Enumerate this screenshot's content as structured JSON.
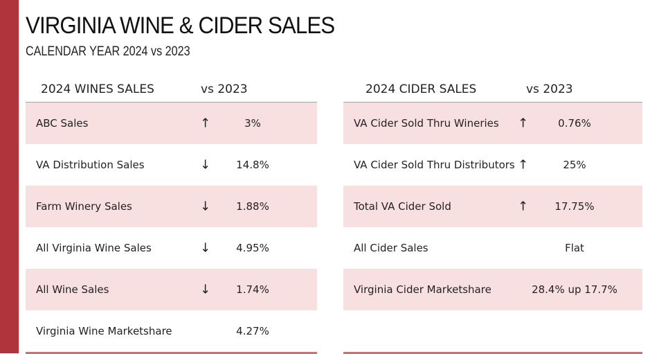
{
  "title": "VIRGINIA WINE & CIDER SALES",
  "subtitle": "CALENDAR YEAR 2024 vs 2023",
  "wine": {
    "heading": "2024 WINES SALES",
    "vs": "vs 2023",
    "rows": [
      {
        "label": "ABC Sales",
        "trend": "up",
        "value": "3%"
      },
      {
        "label": "VA Distribution Sales",
        "trend": "down",
        "value": "14.8%"
      },
      {
        "label": "Farm Winery Sales",
        "trend": "down",
        "value": "1.88%"
      },
      {
        "label": "All Virginia Wine Sales",
        "trend": "down",
        "value": "4.95%"
      },
      {
        "label": "All Wine Sales",
        "trend": "down",
        "value": "1.74%"
      },
      {
        "label": "Virginia Wine Marketshare",
        "trend": "none",
        "value": "4.27%"
      }
    ]
  },
  "cider": {
    "heading": "2024 CIDER SALES",
    "vs": "vs 2023",
    "rows": [
      {
        "label": "VA Cider Sold Thru Wineries",
        "trend": "up",
        "value": "0.76%"
      },
      {
        "label": "VA Cider Sold Thru Distributors",
        "trend": "up",
        "value": "25%"
      },
      {
        "label": "Total VA Cider Sold",
        "trend": "up",
        "value": "17.75%"
      },
      {
        "label": "All Cider Sales",
        "trend": "none",
        "value": "Flat"
      },
      {
        "label": "Virginia Cider Marketshare",
        "trend": "none",
        "value": "28.4% up 17.7%"
      }
    ]
  },
  "colors": {
    "accent": "#b0343b",
    "row_shade": "#f8dfe0"
  }
}
